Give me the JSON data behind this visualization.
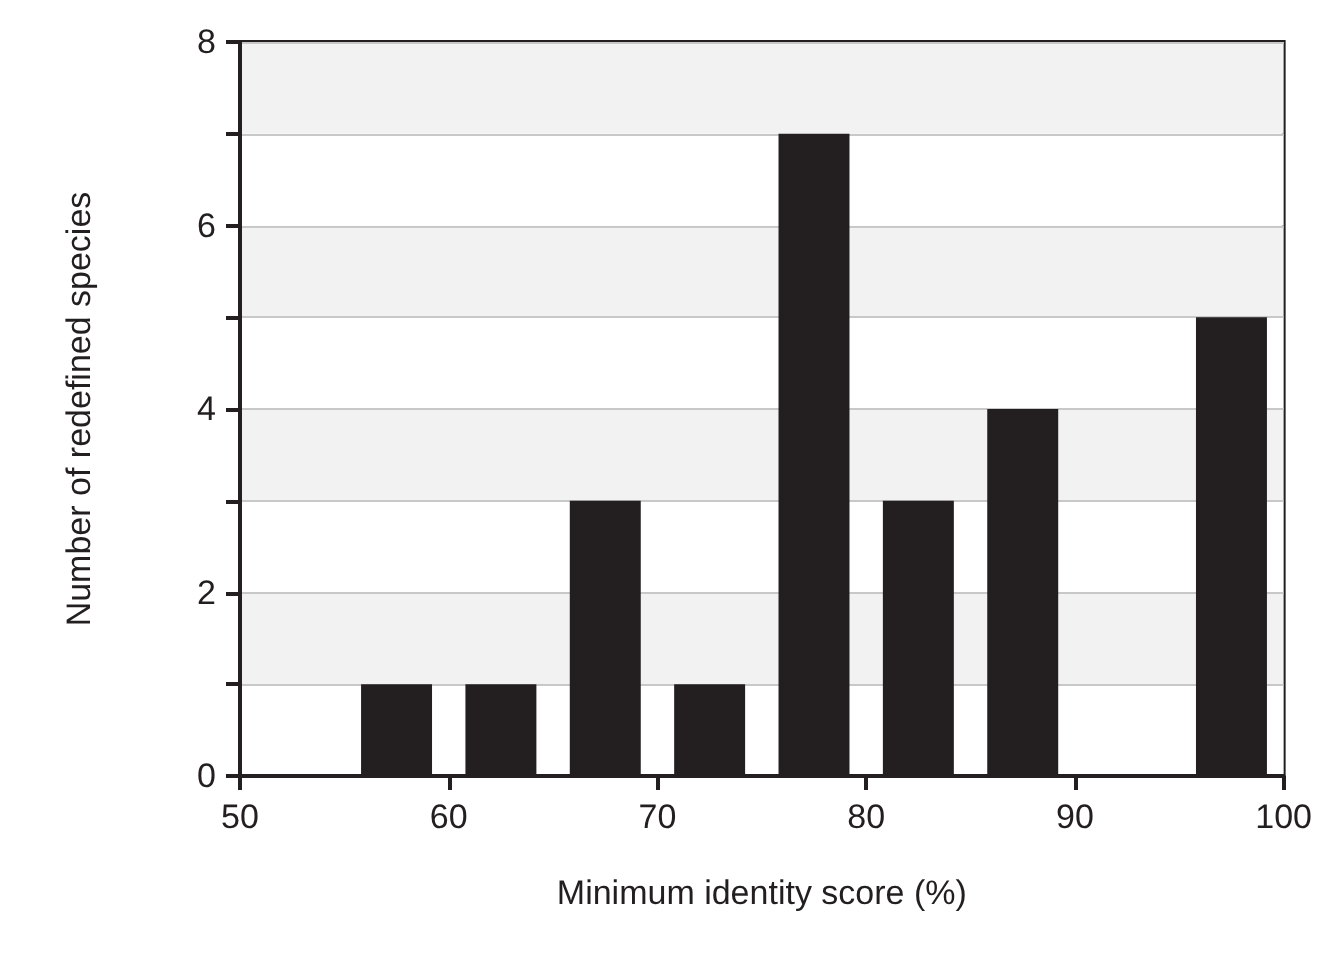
{
  "chart_data": {
    "type": "histogram",
    "xlabel": "Minimum identity score (%)",
    "ylabel": "Number of redefined species",
    "bins": [
      50,
      55,
      60,
      65,
      70,
      75,
      80,
      85,
      90,
      95,
      100
    ],
    "values": [
      0,
      1,
      1,
      3,
      1,
      7,
      3,
      4,
      0,
      5
    ],
    "color": "#231f20",
    "xlim": [
      50,
      100
    ],
    "xticks": [
      50,
      60,
      70,
      80,
      90,
      100
    ],
    "ylim": [
      0,
      8
    ],
    "yticks": [
      0,
      {
        "value": 1,
        "label": null
      },
      2,
      {
        "value": 3,
        "label": null
      },
      4,
      {
        "value": 5,
        "label": null
      },
      6,
      {
        "value": 7,
        "label": null
      },
      8
    ],
    "grid": "y"
  }
}
